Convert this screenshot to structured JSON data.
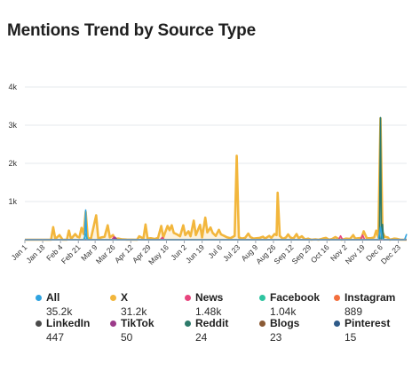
{
  "title": "Mentions Trend by Source Type",
  "chart_data": {
    "type": "area",
    "ylim": [
      0,
      4000
    ],
    "yticks": [
      {
        "value": 1000,
        "label": "1k"
      },
      {
        "value": 2000,
        "label": "2k"
      },
      {
        "value": 3000,
        "label": "3k"
      },
      {
        "value": 4000,
        "label": "4k"
      }
    ],
    "xlim": [
      0,
      364
    ],
    "xticks": [
      {
        "day": 0,
        "label": "Jan 1"
      },
      {
        "day": 17,
        "label": "Jan 18"
      },
      {
        "day": 34,
        "label": "Feb 4"
      },
      {
        "day": 51,
        "label": "Feb 21"
      },
      {
        "day": 67,
        "label": "Mar 9"
      },
      {
        "day": 84,
        "label": "Mar 26"
      },
      {
        "day": 101,
        "label": "Apr 12"
      },
      {
        "day": 118,
        "label": "Apr 29"
      },
      {
        "day": 135,
        "label": "May 16"
      },
      {
        "day": 152,
        "label": "Jun 2"
      },
      {
        "day": 169,
        "label": "Jun 19"
      },
      {
        "day": 186,
        "label": "Jul 6"
      },
      {
        "day": 203,
        "label": "Jul 23"
      },
      {
        "day": 220,
        "label": "Aug 9"
      },
      {
        "day": 237,
        "label": "Aug 26"
      },
      {
        "day": 254,
        "label": "Sep 12"
      },
      {
        "day": 271,
        "label": "Sep 29"
      },
      {
        "day": 288,
        "label": "Oct 16"
      },
      {
        "day": 305,
        "label": "Nov 2"
      },
      {
        "day": 322,
        "label": "Nov 19"
      },
      {
        "day": 339,
        "label": "Dec 6"
      },
      {
        "day": 356,
        "label": "Dec 23"
      }
    ],
    "series": [
      {
        "name": "X",
        "color": "#f2b63c",
        "points": [
          [
            0,
            0
          ],
          [
            25,
            0
          ],
          [
            27,
            330
          ],
          [
            29,
            20
          ],
          [
            33,
            120
          ],
          [
            36,
            0
          ],
          [
            40,
            0
          ],
          [
            42,
            240
          ],
          [
            44,
            20
          ],
          [
            48,
            150
          ],
          [
            50,
            80
          ],
          [
            52,
            60
          ],
          [
            54,
            310
          ],
          [
            56,
            150
          ],
          [
            58,
            730
          ],
          [
            60,
            40
          ],
          [
            63,
            30
          ],
          [
            68,
            640
          ],
          [
            70,
            30
          ],
          [
            73,
            60
          ],
          [
            76,
            80
          ],
          [
            79,
            380
          ],
          [
            81,
            60
          ],
          [
            84,
            120
          ],
          [
            86,
            20
          ],
          [
            89,
            30
          ],
          [
            93,
            10
          ],
          [
            97,
            5
          ],
          [
            107,
            0
          ],
          [
            109,
            90
          ],
          [
            113,
            30
          ],
          [
            115,
            400
          ],
          [
            117,
            30
          ],
          [
            120,
            40
          ],
          [
            124,
            20
          ],
          [
            127,
            50
          ],
          [
            130,
            360
          ],
          [
            132,
            60
          ],
          [
            136,
            360
          ],
          [
            138,
            250
          ],
          [
            140,
            380
          ],
          [
            142,
            180
          ],
          [
            145,
            140
          ],
          [
            148,
            90
          ],
          [
            151,
            380
          ],
          [
            153,
            120
          ],
          [
            156,
            220
          ],
          [
            158,
            90
          ],
          [
            161,
            500
          ],
          [
            163,
            120
          ],
          [
            167,
            390
          ],
          [
            169,
            60
          ],
          [
            172,
            580
          ],
          [
            174,
            190
          ],
          [
            177,
            320
          ],
          [
            179,
            180
          ],
          [
            182,
            100
          ],
          [
            185,
            260
          ],
          [
            187,
            140
          ],
          [
            190,
            100
          ],
          [
            193,
            60
          ],
          [
            196,
            40
          ],
          [
            200,
            100
          ],
          [
            202,
            2200
          ],
          [
            204,
            60
          ],
          [
            207,
            30
          ],
          [
            210,
            50
          ],
          [
            213,
            160
          ],
          [
            215,
            70
          ],
          [
            218,
            30
          ],
          [
            221,
            40
          ],
          [
            224,
            50
          ],
          [
            227,
            80
          ],
          [
            229,
            30
          ],
          [
            233,
            100
          ],
          [
            235,
            50
          ],
          [
            238,
            150
          ],
          [
            240,
            120
          ],
          [
            241,
            1230
          ],
          [
            243,
            100
          ],
          [
            246,
            20
          ],
          [
            249,
            60
          ],
          [
            251,
            140
          ],
          [
            253,
            60
          ],
          [
            256,
            30
          ],
          [
            259,
            150
          ],
          [
            261,
            40
          ],
          [
            264,
            90
          ],
          [
            267,
            10
          ],
          [
            270,
            30
          ],
          [
            273,
            0
          ],
          [
            277,
            10
          ],
          [
            280,
            0
          ],
          [
            284,
            30
          ],
          [
            287,
            50
          ],
          [
            290,
            0
          ],
          [
            293,
            20
          ],
          [
            296,
            70
          ],
          [
            299,
            20
          ],
          [
            302,
            0
          ],
          [
            306,
            30
          ],
          [
            310,
            20
          ],
          [
            313,
            120
          ],
          [
            315,
            30
          ],
          [
            318,
            40
          ],
          [
            321,
            50
          ],
          [
            323,
            220
          ],
          [
            326,
            40
          ],
          [
            330,
            40
          ],
          [
            333,
            60
          ],
          [
            335,
            240
          ],
          [
            337,
            70
          ],
          [
            339,
            3180
          ],
          [
            341,
            200
          ],
          [
            343,
            80
          ],
          [
            346,
            60
          ],
          [
            348,
            0
          ],
          [
            352,
            30
          ],
          [
            355,
            20
          ],
          [
            358,
            0
          ],
          [
            364,
            0
          ]
        ]
      },
      {
        "name": "Facebook",
        "color": "#2ec4a0",
        "points": [
          [
            0,
            0
          ],
          [
            56,
            0
          ],
          [
            58,
            150
          ],
          [
            60,
            0
          ],
          [
            339,
            0
          ],
          [
            340,
            90
          ],
          [
            342,
            0
          ],
          [
            364,
            0
          ]
        ]
      },
      {
        "name": "News",
        "color": "#e8457e",
        "points": [
          [
            0,
            0
          ],
          [
            83,
            0
          ],
          [
            85,
            80
          ],
          [
            87,
            0
          ],
          [
            129,
            0
          ],
          [
            131,
            60
          ],
          [
            133,
            0
          ],
          [
            299,
            0
          ],
          [
            301,
            100
          ],
          [
            303,
            0
          ],
          [
            320,
            0
          ],
          [
            322,
            120
          ],
          [
            324,
            0
          ],
          [
            364,
            0
          ]
        ]
      },
      {
        "name": "TikTok",
        "color": "#9c3b8a",
        "points": [
          [
            0,
            0
          ],
          [
            84,
            0
          ],
          [
            86,
            60
          ],
          [
            88,
            0
          ],
          [
            364,
            0
          ]
        ]
      },
      {
        "name": "Reddit",
        "color": "#2d7a6a",
        "points": [
          [
            0,
            0
          ],
          [
            338,
            0
          ],
          [
            339,
            3200
          ],
          [
            340,
            0
          ],
          [
            341,
            400
          ],
          [
            342,
            0
          ],
          [
            364,
            0
          ]
        ]
      },
      {
        "name": "All",
        "color": "#2fa3e0",
        "points": [
          [
            0,
            0
          ],
          [
            57,
            0
          ],
          [
            58,
            780
          ],
          [
            59,
            0
          ],
          [
            337,
            0
          ],
          [
            339,
            330
          ],
          [
            341,
            0
          ],
          [
            362,
            0
          ],
          [
            364,
            150
          ]
        ]
      }
    ]
  },
  "legend": [
    {
      "name": "All",
      "value": "35.2k",
      "color": "#2fa3e0"
    },
    {
      "name": "X",
      "value": "31.2k",
      "color": "#f2b63c"
    },
    {
      "name": "News",
      "value": "1.48k",
      "color": "#e8457e"
    },
    {
      "name": "Facebook",
      "value": "1.04k",
      "color": "#2ec4a0"
    },
    {
      "name": "Instagram",
      "value": "889",
      "color": "#f36f3d"
    },
    {
      "name": "LinkedIn",
      "value": "447",
      "color": "#4a4a4a"
    },
    {
      "name": "TikTok",
      "value": "50",
      "color": "#9c3b8a"
    },
    {
      "name": "Reddit",
      "value": "24",
      "color": "#2d7a6a"
    },
    {
      "name": "Blogs",
      "value": "23",
      "color": "#8a5a35"
    },
    {
      "name": "Pinterest",
      "value": "15",
      "color": "#2e5a88"
    }
  ]
}
